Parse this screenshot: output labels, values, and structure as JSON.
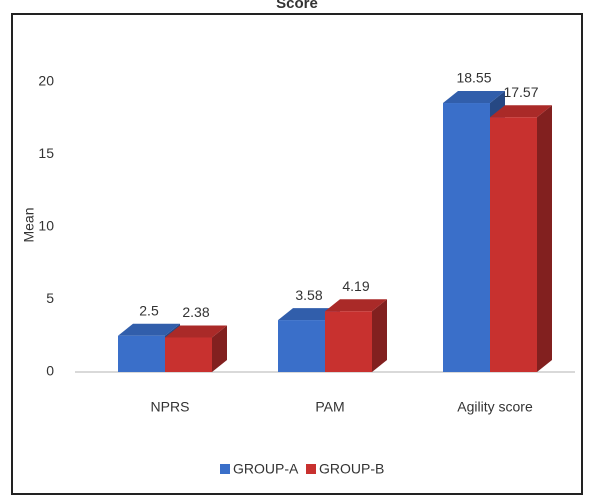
{
  "chart_data": {
    "type": "bar3d",
    "title": "Score",
    "y_label": "Mean",
    "categories": [
      "NPRS",
      "PAM",
      "Agility score"
    ],
    "series": [
      {
        "name": "GROUP-A",
        "color": "#3a6fc9",
        "values": [
          2.5,
          3.58,
          18.55
        ]
      },
      {
        "name": "GROUP-B",
        "color": "#c8312f",
        "values": [
          2.38,
          4.19,
          17.57
        ]
      }
    ],
    "ylim": [
      0,
      20
    ],
    "yticks": [
      0,
      5,
      10,
      15,
      20
    ],
    "legend": "bottom"
  }
}
